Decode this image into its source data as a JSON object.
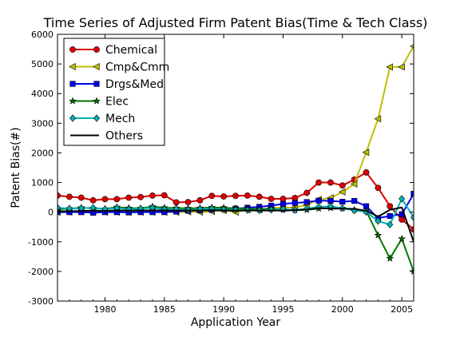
{
  "chart_data": {
    "type": "line",
    "title": "Time Series of Adjusted Firm Patent Bias(Time & Tech Class)",
    "xlabel": "Application Year",
    "ylabel": "Patent Bias(#)",
    "xlim": [
      1976,
      2006
    ],
    "ylim": [
      -3000,
      6000
    ],
    "xticks": [
      1980,
      1985,
      1990,
      1995,
      2000,
      2005
    ],
    "yticks": [
      -3000,
      -2000,
      -1000,
      0,
      1000,
      2000,
      3000,
      4000,
      5000,
      6000
    ],
    "grid": false,
    "legend_position": "top-left",
    "x": [
      1976,
      1977,
      1978,
      1979,
      1980,
      1981,
      1982,
      1983,
      1984,
      1985,
      1986,
      1987,
      1988,
      1989,
      1990,
      1991,
      1992,
      1993,
      1994,
      1995,
      1996,
      1997,
      1998,
      1999,
      2000,
      2001,
      2002,
      2003,
      2004,
      2005,
      2006
    ],
    "series": [
      {
        "name": "Chemical",
        "color": "#dd0000",
        "marker": "circle",
        "values": [
          560,
          520,
          490,
          400,
          440,
          440,
          490,
          510,
          560,
          570,
          330,
          340,
          400,
          550,
          530,
          550,
          560,
          520,
          450,
          450,
          480,
          650,
          1000,
          1000,
          900,
          1100,
          1340,
          820,
          200,
          -250,
          -580
        ]
      },
      {
        "name": "Cmp&Cmm",
        "color": "#bfbf00",
        "marker": "triangle-left",
        "values": [
          0,
          0,
          20,
          0,
          0,
          0,
          0,
          0,
          0,
          0,
          0,
          10,
          0,
          20,
          60,
          0,
          80,
          80,
          150,
          150,
          160,
          240,
          430,
          480,
          680,
          950,
          2020,
          3150,
          4900,
          4900,
          5600
        ]
      },
      {
        "name": "Drgs&Med",
        "color": "#0000ee",
        "marker": "square",
        "values": [
          0,
          0,
          0,
          -20,
          0,
          0,
          -10,
          0,
          0,
          0,
          20,
          50,
          60,
          80,
          100,
          120,
          150,
          180,
          220,
          280,
          310,
          340,
          390,
          380,
          350,
          380,
          200,
          -200,
          -130,
          -70,
          620
        ]
      },
      {
        "name": "Elec",
        "color": "#007700",
        "marker": "star",
        "values": [
          100,
          120,
          150,
          130,
          110,
          170,
          140,
          130,
          190,
          150,
          140,
          130,
          140,
          160,
          150,
          130,
          120,
          100,
          120,
          80,
          70,
          80,
          120,
          140,
          130,
          80,
          40,
          -780,
          -1560,
          -900,
          -2000
        ]
      },
      {
        "name": "Mech",
        "color": "#00b3b3",
        "marker": "diamond",
        "values": [
          150,
          120,
          130,
          150,
          100,
          140,
          100,
          120,
          150,
          100,
          110,
          80,
          100,
          120,
          90,
          80,
          70,
          60,
          80,
          100,
          70,
          120,
          180,
          200,
          130,
          60,
          10,
          -300,
          -420,
          450,
          -180
        ]
      },
      {
        "name": "Others",
        "color": "#000000",
        "marker": "none",
        "values": [
          30,
          30,
          40,
          50,
          40,
          60,
          50,
          60,
          60,
          60,
          50,
          60,
          50,
          70,
          60,
          50,
          60,
          50,
          60,
          50,
          70,
          90,
          140,
          120,
          120,
          110,
          50,
          -150,
          80,
          160,
          -1000
        ]
      }
    ]
  }
}
